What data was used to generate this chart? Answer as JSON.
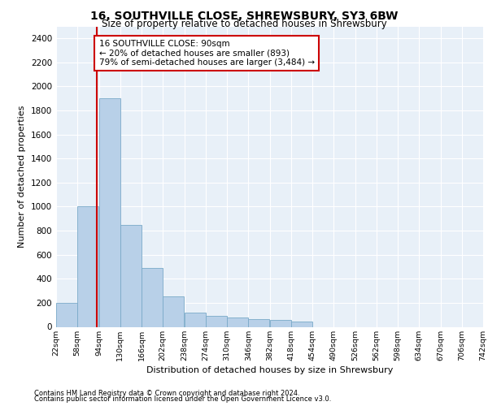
{
  "title": "16, SOUTHVILLE CLOSE, SHREWSBURY, SY3 6BW",
  "subtitle": "Size of property relative to detached houses in Shrewsbury",
  "xlabel": "Distribution of detached houses by size in Shrewsbury",
  "ylabel": "Number of detached properties",
  "footnote1": "Contains HM Land Registry data © Crown copyright and database right 2024.",
  "footnote2": "Contains public sector information licensed under the Open Government Licence v3.0.",
  "bar_color": "#b8d0e8",
  "bar_edge_color": "#7aaac8",
  "annotation_box_text": "16 SOUTHVILLE CLOSE: 90sqm\n← 20% of detached houses are smaller (893)\n79% of semi-detached houses are larger (3,484) →",
  "bins": [
    22,
    58,
    94,
    130,
    166,
    202,
    238,
    274,
    310,
    346,
    382,
    418,
    454,
    490,
    526,
    562,
    598,
    634,
    670,
    706,
    742
  ],
  "bin_labels": [
    "22sqm",
    "58sqm",
    "94sqm",
    "130sqm",
    "166sqm",
    "202sqm",
    "238sqm",
    "274sqm",
    "310sqm",
    "346sqm",
    "382sqm",
    "418sqm",
    "454sqm",
    "490sqm",
    "526sqm",
    "562sqm",
    "598sqm",
    "634sqm",
    "670sqm",
    "706sqm",
    "742sqm"
  ],
  "bar_heights": [
    200,
    1000,
    1900,
    850,
    490,
    255,
    115,
    90,
    75,
    65,
    55,
    45,
    0,
    0,
    0,
    0,
    0,
    0,
    0,
    0
  ],
  "ylim": [
    0,
    2500
  ],
  "yticks": [
    0,
    200,
    400,
    600,
    800,
    1000,
    1200,
    1400,
    1600,
    1800,
    2000,
    2200,
    2400
  ],
  "plot_bg_color": "#e8f0f8",
  "grid_color": "#ffffff",
  "red_line_color": "#cc0000",
  "box_edge_color": "#cc0000",
  "property_sqm": 90,
  "bin_width": 36
}
